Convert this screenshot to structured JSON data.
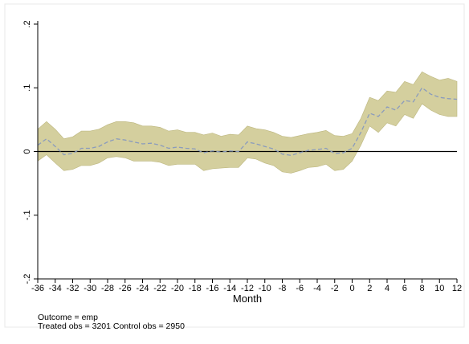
{
  "chart_data": {
    "type": "line",
    "xlabel": "Month",
    "ylabel": "",
    "title": "",
    "xlim": [
      -36,
      12
    ],
    "ylim": [
      -0.2,
      0.2
    ],
    "xticks": [
      -36,
      -34,
      -32,
      -30,
      -28,
      -26,
      -24,
      -22,
      -20,
      -18,
      -16,
      -14,
      -12,
      -10,
      -8,
      -6,
      -4,
      -2,
      0,
      2,
      4,
      6,
      8,
      10,
      12
    ],
    "xtick_labels": [
      "-36",
      "-34",
      "-32",
      "-30",
      "-28",
      "-26",
      "-24",
      "-22",
      "-20",
      "-18",
      "-16",
      "-14",
      "-12",
      "-10",
      "-8",
      "-6",
      "-4",
      "-2",
      "0",
      "2",
      "4",
      "6",
      "8",
      "10",
      "12"
    ],
    "yticks": [
      -0.2,
      -0.1,
      0,
      0.1,
      0.2
    ],
    "ytick_labels": [
      "-.2",
      "-.1",
      "0",
      ".1",
      ".2"
    ],
    "reference_line_y": 0,
    "grid": false,
    "colors": {
      "band": "#d4cf9e",
      "band_edge": "#bcb67e",
      "estimate": "#8a9bbd",
      "zero_line": "#000000"
    },
    "x": [
      -36,
      -35,
      -34,
      -33,
      -32,
      -31,
      -30,
      -29,
      -28,
      -27,
      -26,
      -25,
      -24,
      -23,
      -22,
      -21,
      -20,
      -19,
      -18,
      -17,
      -16,
      -15,
      -14,
      -13,
      -12,
      -11,
      -10,
      -9,
      -8,
      -7,
      -6,
      -5,
      -4,
      -3,
      -2,
      -1,
      0,
      1,
      2,
      3,
      4,
      5,
      6,
      7,
      8,
      9,
      10,
      11,
      12
    ],
    "series": [
      {
        "values": [
          0.01,
          0.02,
          0.008,
          -0.005,
          -0.003,
          0.005,
          0.005,
          0.008,
          0.015,
          0.02,
          0.018,
          0.015,
          0.012,
          0.013,
          0.01,
          0.005,
          0.007,
          0.005,
          0.004,
          -0.002,
          0.001,
          -0.001,
          0.001,
          0.0,
          0.015,
          0.012,
          0.008,
          0.004,
          -0.004,
          -0.006,
          -0.002,
          0.002,
          0.003,
          0.005,
          -0.003,
          -0.002,
          0.005,
          0.03,
          0.06,
          0.055,
          0.07,
          0.065,
          0.08,
          0.078,
          0.1,
          0.09,
          0.085,
          0.083,
          0.082
        ],
        "lower": [
          -0.015,
          -0.005,
          -0.018,
          -0.03,
          -0.028,
          -0.022,
          -0.022,
          -0.018,
          -0.01,
          -0.008,
          -0.01,
          -0.015,
          -0.015,
          -0.015,
          -0.017,
          -0.022,
          -0.02,
          -0.02,
          -0.02,
          -0.03,
          -0.027,
          -0.026,
          -0.025,
          -0.025,
          -0.01,
          -0.012,
          -0.018,
          -0.022,
          -0.032,
          -0.034,
          -0.03,
          -0.025,
          -0.024,
          -0.02,
          -0.03,
          -0.028,
          -0.015,
          0.01,
          0.04,
          0.03,
          0.045,
          0.04,
          0.058,
          0.052,
          0.075,
          0.065,
          0.058,
          0.055,
          0.055
        ],
        "upper": [
          0.035,
          0.047,
          0.035,
          0.02,
          0.023,
          0.032,
          0.032,
          0.035,
          0.042,
          0.047,
          0.047,
          0.045,
          0.04,
          0.04,
          0.038,
          0.032,
          0.034,
          0.03,
          0.03,
          0.026,
          0.029,
          0.024,
          0.027,
          0.026,
          0.04,
          0.036,
          0.034,
          0.03,
          0.024,
          0.022,
          0.025,
          0.028,
          0.03,
          0.033,
          0.025,
          0.024,
          0.028,
          0.052,
          0.085,
          0.08,
          0.095,
          0.093,
          0.11,
          0.105,
          0.125,
          0.118,
          0.112,
          0.115,
          0.11
        ]
      }
    ]
  },
  "notes": {
    "line1": "Outcome = emp",
    "line2": "Treated obs = 3201 Control obs = 2950"
  }
}
